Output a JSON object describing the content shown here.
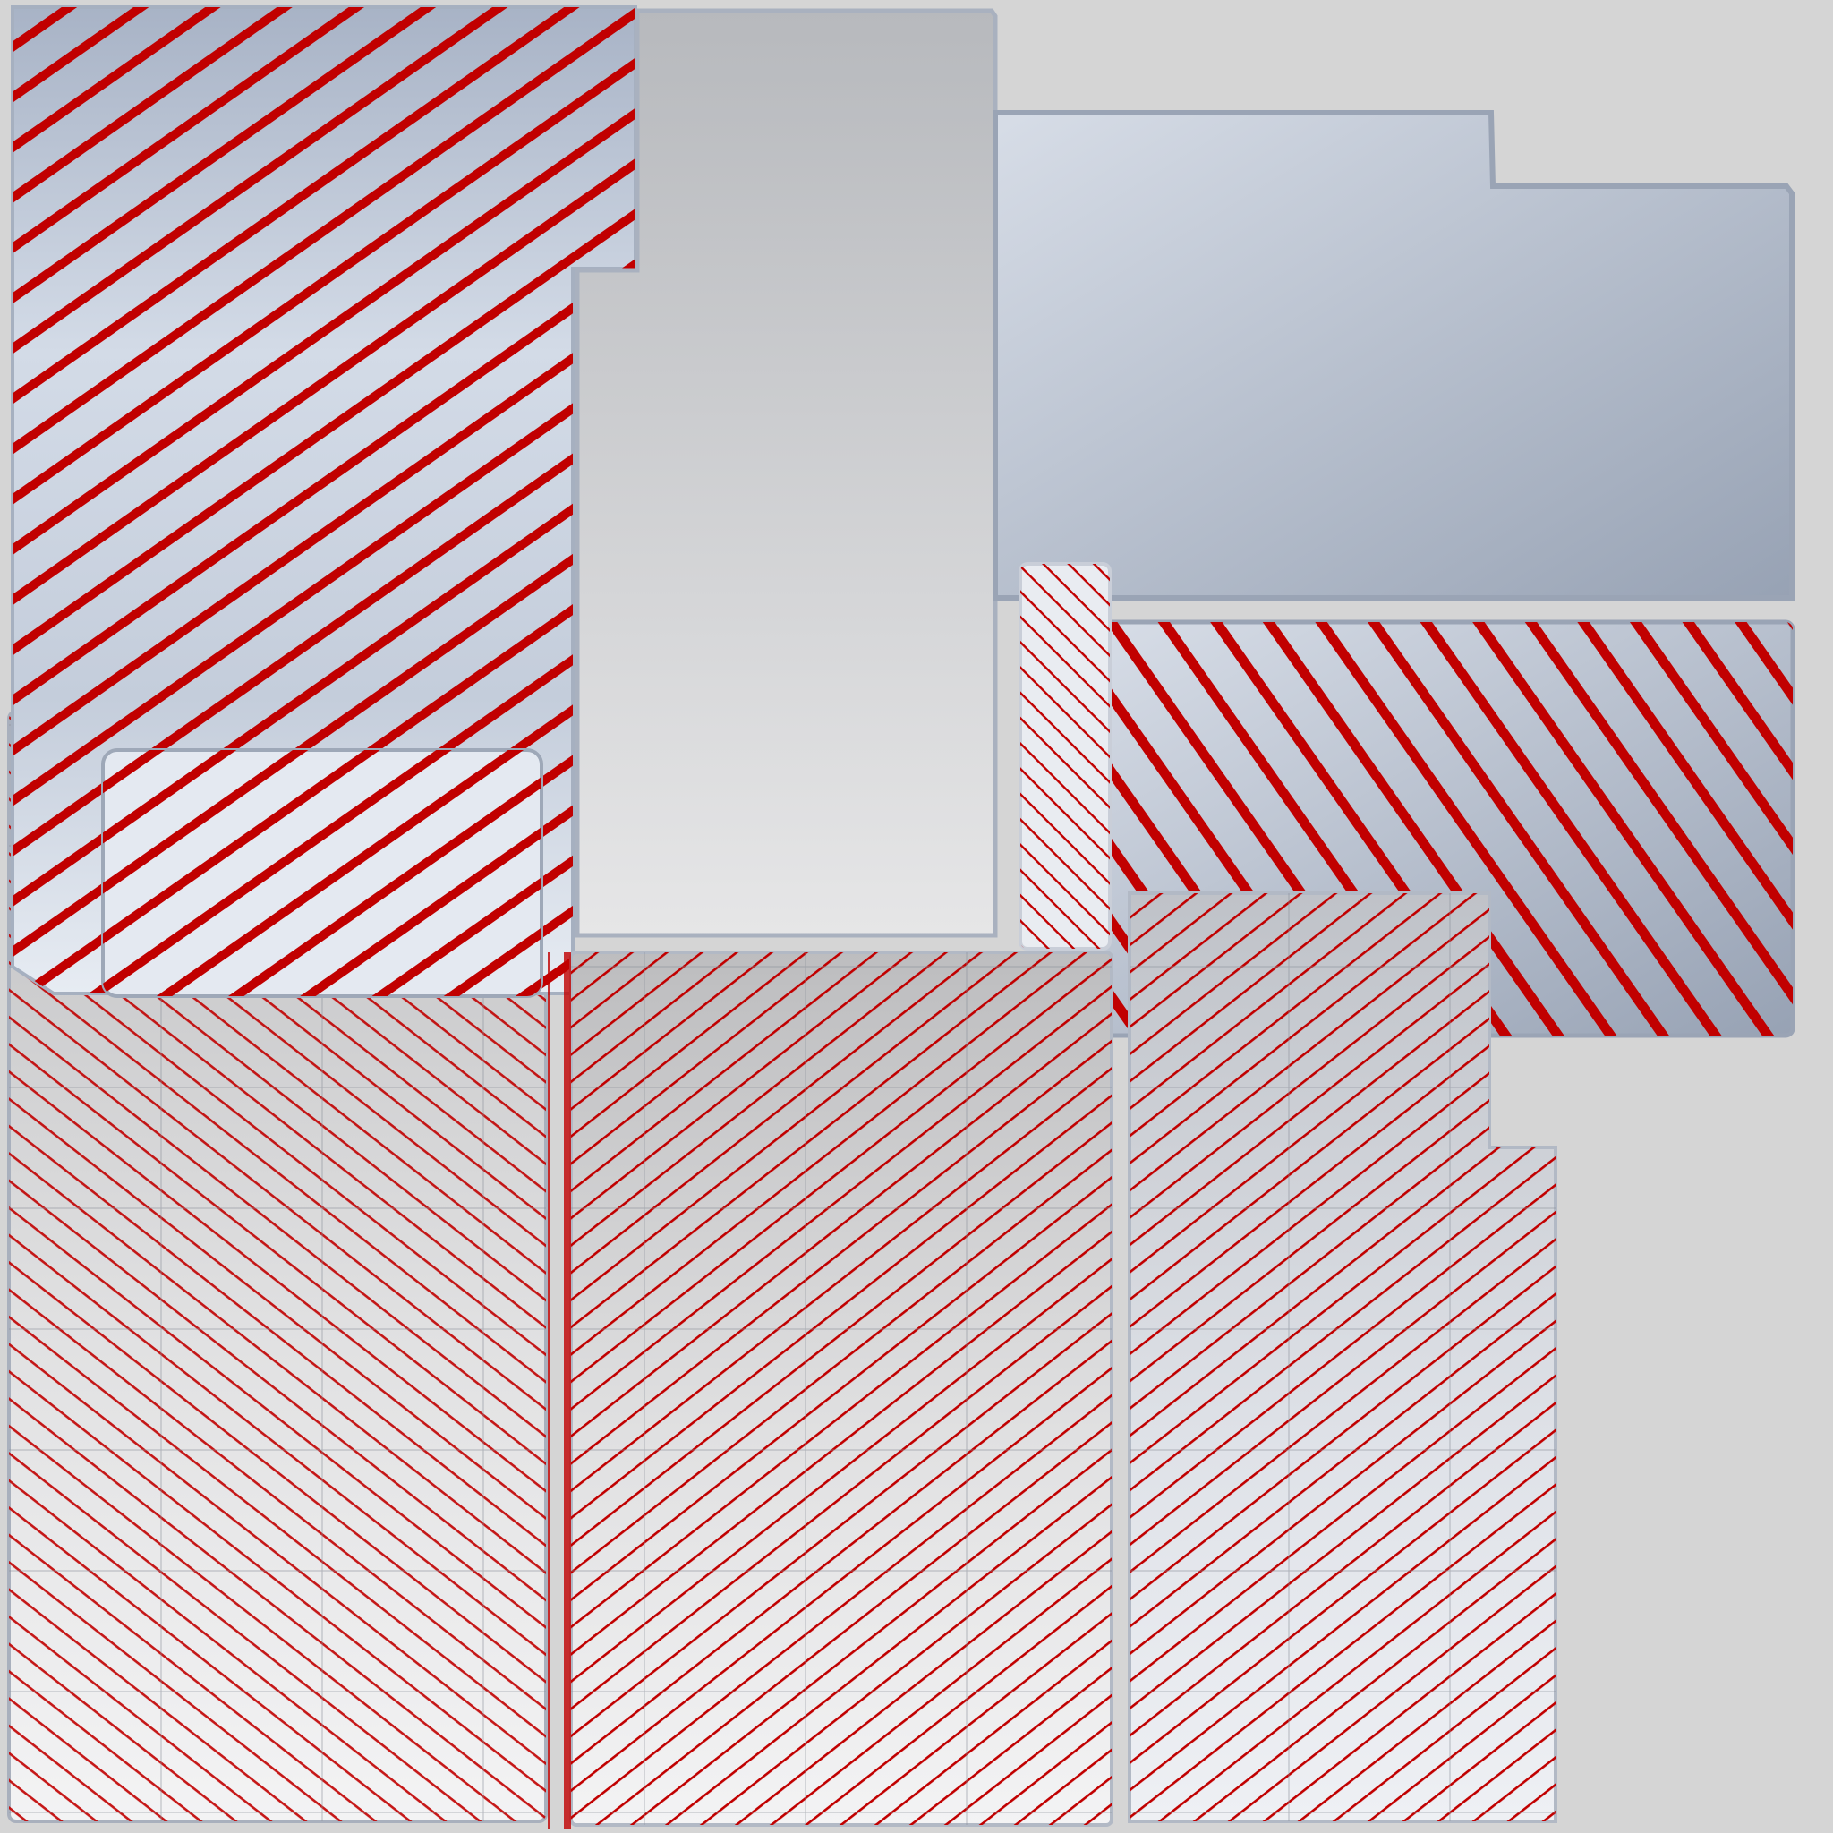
{
  "canvas": {
    "title": "",
    "background_color": "#d5d5d5"
  },
  "palette": {
    "stripe_red": "#c10000",
    "steel_light": "#d2d9e4",
    "steel_dark": "#97a2b4",
    "glass_grey": "#bfc0c2",
    "grid_line": "#8a8f99"
  },
  "panels": [
    {
      "id": "top-left-hatched-panel",
      "pattern": "diagonal-stripes-thick"
    },
    {
      "id": "center-tall-grey-panel",
      "pattern": "none"
    },
    {
      "id": "top-right-stepped-panel",
      "pattern": "none"
    },
    {
      "id": "right-hatched-panel",
      "pattern": "diagonal-stripes-thick"
    },
    {
      "id": "narrow-center-hatched-strip",
      "pattern": "diagonal-stripes-thin"
    },
    {
      "id": "left-inner-hatched-panel",
      "pattern": "diagonal-stripes-thick"
    },
    {
      "id": "bottom-left-grid-panel",
      "pattern": "grid-with-thin-stripes"
    },
    {
      "id": "bottom-center-grid-panel",
      "pattern": "grid-with-thin-stripes"
    },
    {
      "id": "bottom-right-grid-panel",
      "pattern": "grid-with-thin-stripes"
    }
  ]
}
